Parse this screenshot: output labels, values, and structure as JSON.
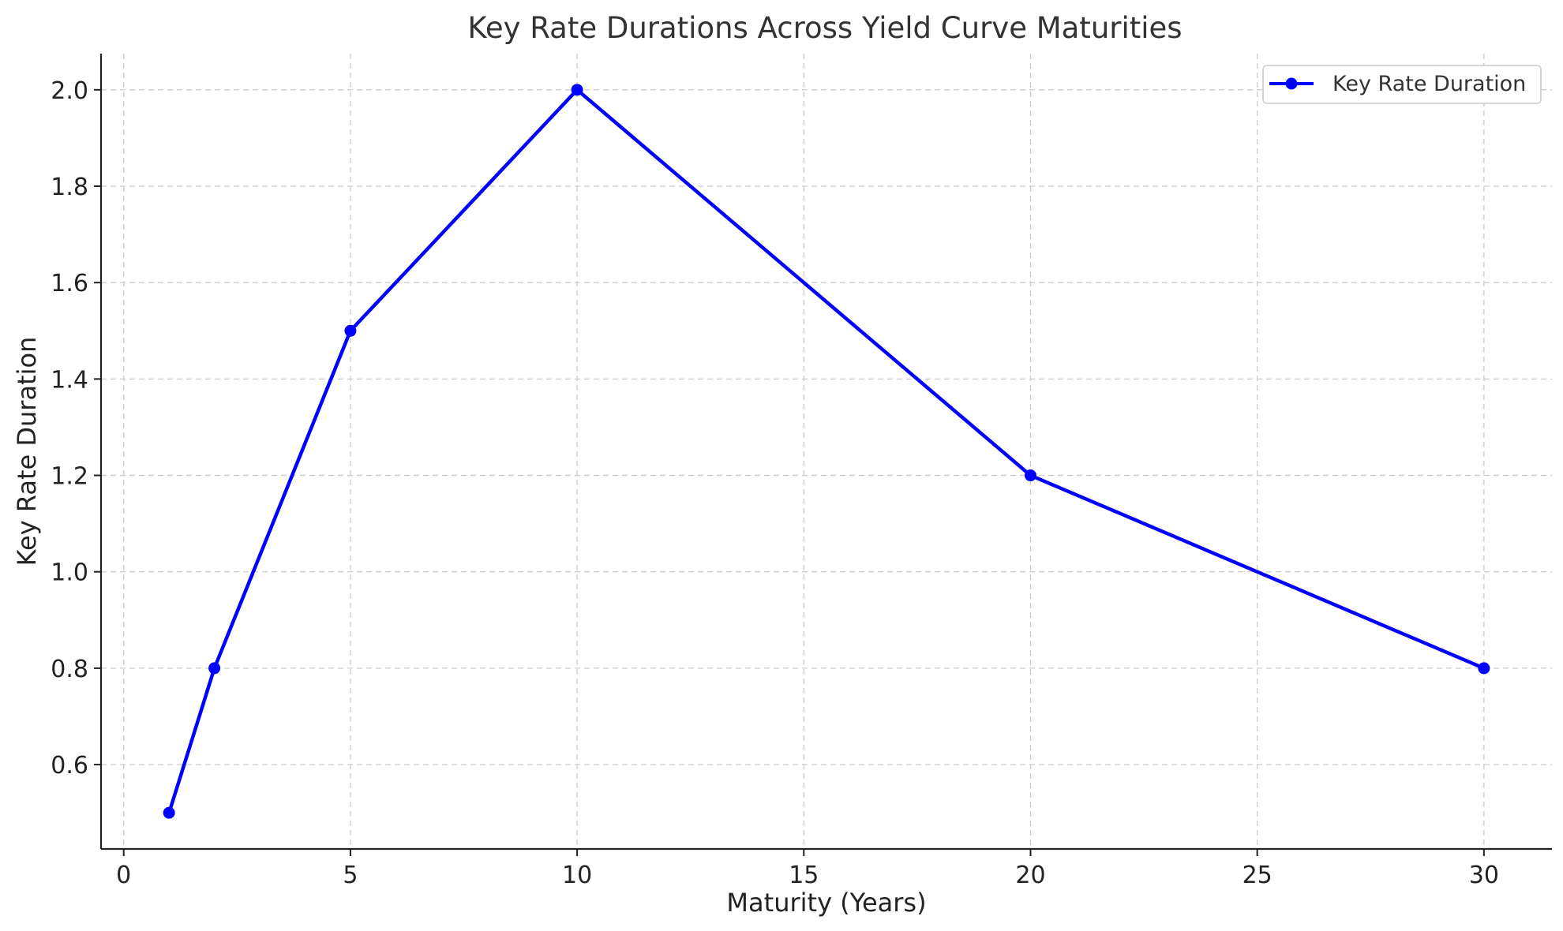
{
  "chart_data": {
    "type": "line",
    "title": "Key Rate Durations Across Yield Curve Maturities",
    "xlabel": "Maturity (Years)",
    "ylabel": "Key Rate Duration",
    "xlim": [
      -0.5,
      31.5
    ],
    "ylim": [
      0.425,
      2.075
    ],
    "xticks": [
      0,
      5,
      10,
      15,
      20,
      25,
      30
    ],
    "xtick_labels": [
      "0",
      "5",
      "10",
      "15",
      "20",
      "25",
      "30"
    ],
    "yticks": [
      0.6,
      0.8,
      1.0,
      1.2,
      1.4,
      1.6,
      1.8,
      2.0
    ],
    "ytick_labels": [
      "0.6",
      "0.8",
      "1.0",
      "1.2",
      "1.4",
      "1.6",
      "1.8",
      "2.0"
    ],
    "grid": true,
    "legend_position": "top-right",
    "series": [
      {
        "name": "Key Rate Duration",
        "color": "#0000ff",
        "marker": "circle",
        "x": [
          1,
          2,
          5,
          10,
          20,
          30
        ],
        "y": [
          0.5,
          0.8,
          1.5,
          2.0,
          1.2,
          0.8
        ]
      }
    ]
  }
}
